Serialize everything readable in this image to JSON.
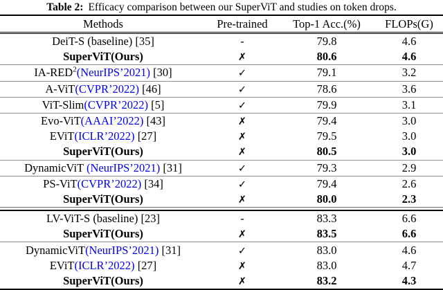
{
  "caption": {
    "label": "Table 2:",
    "text": "Efficacy comparison between our SuperViT and studies on token drops."
  },
  "colors": {
    "link_blue": "#0000EE",
    "text": "#000000",
    "thin_rule": "#8d8d8d"
  },
  "icons": {
    "check": "✓",
    "cross": "✗",
    "dash": "-"
  },
  "table": {
    "headers": [
      "Methods",
      "Pre-trained",
      "Top-1 Acc.(%)",
      "FLOPs(G)"
    ],
    "rows": [
      {
        "method": "DeiT-S (baseline)",
        "sup": "",
        "venue": "",
        "ref": " [35]",
        "pretrained": "-",
        "top1": "79.8",
        "flops": "4.6",
        "bold": false,
        "sep_after": "none"
      },
      {
        "method": "SuperViT(Ours)",
        "sup": "",
        "venue": "",
        "ref": "",
        "pretrained": "✗",
        "top1": "80.6",
        "flops": "4.6",
        "bold": true,
        "sep_after": "thin"
      },
      {
        "method": "IA-RED",
        "sup": "2",
        "venue": "(NeurIPS’2021)",
        "ref": " [30]",
        "pretrained": "✓",
        "top1": "79.1",
        "flops": "3.2",
        "bold": false,
        "sep_after": "thin"
      },
      {
        "method": "A-ViT",
        "sup": "",
        "venue": "(CVPR’2022)",
        "ref": " [46]",
        "pretrained": "✓",
        "top1": "78.6",
        "flops": "3.6",
        "bold": false,
        "sep_after": "thin"
      },
      {
        "method": "ViT-Slim",
        "sup": "",
        "venue": "(CVPR’2022)",
        "ref": " [5]",
        "pretrained": "✓",
        "top1": "79.9",
        "flops": "3.1",
        "bold": false,
        "sep_after": "thin"
      },
      {
        "method": "Evo-ViT",
        "sup": "",
        "venue": "(AAAI’2022)",
        "ref": " [43]",
        "pretrained": "✗",
        "top1": "79.4",
        "flops": "3.0",
        "bold": false,
        "sep_after": "none"
      },
      {
        "method": "EViT",
        "sup": "",
        "venue": "(ICLR’2022)",
        "ref": " [27]",
        "pretrained": "✗",
        "top1": "79.5",
        "flops": "3.0",
        "bold": false,
        "sep_after": "none"
      },
      {
        "method": "SuperViT(Ours)",
        "sup": "",
        "venue": "",
        "ref": "",
        "pretrained": "✗",
        "top1": "80.5",
        "flops": "3.0",
        "bold": true,
        "sep_after": "thin"
      },
      {
        "method": "DynamicViT ",
        "sup": "",
        "venue": "(NeurIPS’2021)",
        "ref": " [31]",
        "pretrained": "✓",
        "top1": "79.3",
        "flops": "2.9",
        "bold": false,
        "sep_after": "thin"
      },
      {
        "method": "PS-ViT",
        "sup": "",
        "venue": "(CVPR’2022)",
        "ref": " [34]",
        "pretrained": "✓",
        "top1": "79.4",
        "flops": "2.6",
        "bold": false,
        "sep_after": "none"
      },
      {
        "method": "SuperViT(Ours)",
        "sup": "",
        "venue": "",
        "ref": "",
        "pretrained": "✗",
        "top1": "80.0",
        "flops": "2.3",
        "bold": true,
        "sep_after": "double"
      },
      {
        "method": "LV-ViT-S (baseline)",
        "sup": "",
        "venue": "",
        "ref": " [23]",
        "pretrained": "-",
        "top1": "83.3",
        "flops": "6.6",
        "bold": false,
        "sep_after": "none"
      },
      {
        "method": "SuperViT(Ours)",
        "sup": "",
        "venue": "",
        "ref": "",
        "pretrained": "✗",
        "top1": "83.5",
        "flops": "6.6",
        "bold": true,
        "sep_after": "thin"
      },
      {
        "method": "DynamicViT",
        "sup": "",
        "venue": "(NeurIPS’2021)",
        "ref": " [31]",
        "pretrained": "✓",
        "top1": "83.0",
        "flops": "4.6",
        "bold": false,
        "sep_after": "none"
      },
      {
        "method": "EViT",
        "sup": "",
        "venue": "(ICLR’2022)",
        "ref": " [27]",
        "pretrained": "✗",
        "top1": "83.0",
        "flops": "4.7",
        "bold": false,
        "sep_after": "none"
      },
      {
        "method": "SuperViT(Ours)",
        "sup": "",
        "venue": "",
        "ref": "",
        "pretrained": "✗",
        "top1": "83.2",
        "flops": "4.3",
        "bold": true,
        "sep_after": "bottom"
      }
    ]
  }
}
